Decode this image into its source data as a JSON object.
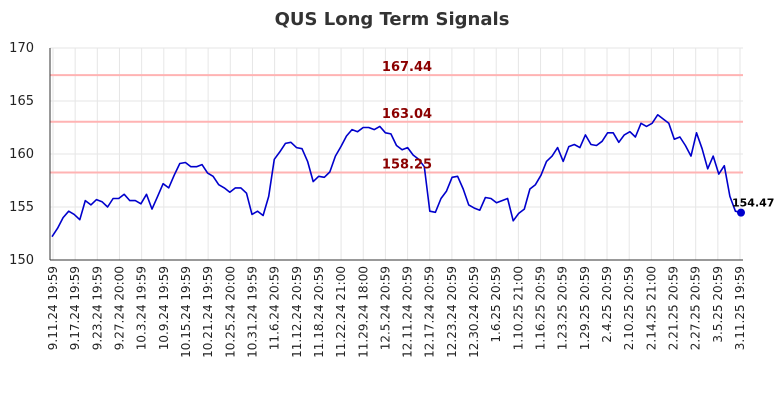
{
  "chart_data": {
    "type": "line",
    "title": "QUS Long Term Signals",
    "xlabel": "",
    "ylabel": "",
    "ylim": [
      150,
      170
    ],
    "yticks": [
      150,
      155,
      160,
      165,
      170
    ],
    "grid": true,
    "colors": {
      "line": "#0000cc",
      "level": "#ffb3b3",
      "level_label": "#8b0000",
      "grid": "#e6e6e6"
    },
    "x_tick_labels": [
      "9.11.24 19:59",
      "9.17.24 19:59",
      "9.23.24 19:59",
      "9.27.24 20:00",
      "10.3.24 19:59",
      "10.9.24 19:59",
      "10.15.24 19:59",
      "10.21.24 19:59",
      "10.25.24 20:00",
      "10.31.24 19:59",
      "11.6.24 20:59",
      "11.12.24 20:59",
      "11.18.24 20:59",
      "11.22.24 21:00",
      "11.29.24 18:00",
      "12.5.24 20:59",
      "12.11.24 20:59",
      "12.17.24 20:59",
      "12.23.24 20:59",
      "12.30.24 20:59",
      "1.6.25 20:59",
      "1.10.25 21:00",
      "1.16.25 20:59",
      "1.23.25 20:59",
      "1.29.25 20:59",
      "2.4.25 20:59",
      "2.10.25 20:59",
      "2.14.25 21:00",
      "2.21.25 20:59",
      "2.27.25 20:59",
      "3.5.25 20:59",
      "3.11.25 19:59"
    ],
    "levels": [
      {
        "value": 167.44,
        "label": "167.44"
      },
      {
        "value": 163.04,
        "label": "163.04"
      },
      {
        "value": 158.25,
        "label": "158.25"
      }
    ],
    "last_value_label": "154.47",
    "series": [
      {
        "values": [
          152.2,
          153.0,
          154.0,
          154.6,
          154.3,
          153.8,
          155.6,
          155.2,
          155.7,
          155.5,
          155.0,
          155.8,
          155.8,
          156.2,
          155.6,
          155.6,
          155.3,
          156.2,
          154.8,
          156.0,
          157.2,
          156.8,
          158.0,
          159.1,
          159.2,
          158.8,
          158.8,
          159.0,
          158.2,
          157.9,
          157.1,
          156.8,
          156.4,
          156.8,
          156.8,
          156.3,
          154.3,
          154.6,
          154.2,
          156.0,
          159.5,
          160.2,
          161.0,
          161.1,
          160.6,
          160.5,
          159.3,
          157.4,
          157.9,
          157.8,
          158.3,
          159.8,
          160.7,
          161.7,
          162.3,
          162.1,
          162.5,
          162.5,
          162.3,
          162.6,
          162.0,
          161.9,
          160.8,
          160.4,
          160.6,
          159.9,
          159.5,
          158.8,
          154.6,
          154.5,
          155.8,
          156.5,
          157.8,
          157.9,
          156.7,
          155.2,
          154.9,
          154.7,
          155.9,
          155.8,
          155.4,
          155.6,
          155.8,
          153.7,
          154.4,
          154.8,
          156.7,
          157.1,
          158.0,
          159.3,
          159.8,
          160.6,
          159.3,
          160.7,
          160.9,
          160.6,
          161.8,
          160.9,
          160.8,
          161.2,
          162.0,
          162.0,
          161.1,
          161.8,
          162.1,
          161.6,
          162.9,
          162.6,
          162.9,
          163.7,
          163.3,
          162.9,
          161.4,
          161.6,
          160.8,
          159.8,
          162.0,
          160.5,
          158.6,
          159.8,
          158.1,
          158.9,
          156.0,
          154.6,
          154.47
        ]
      }
    ]
  }
}
